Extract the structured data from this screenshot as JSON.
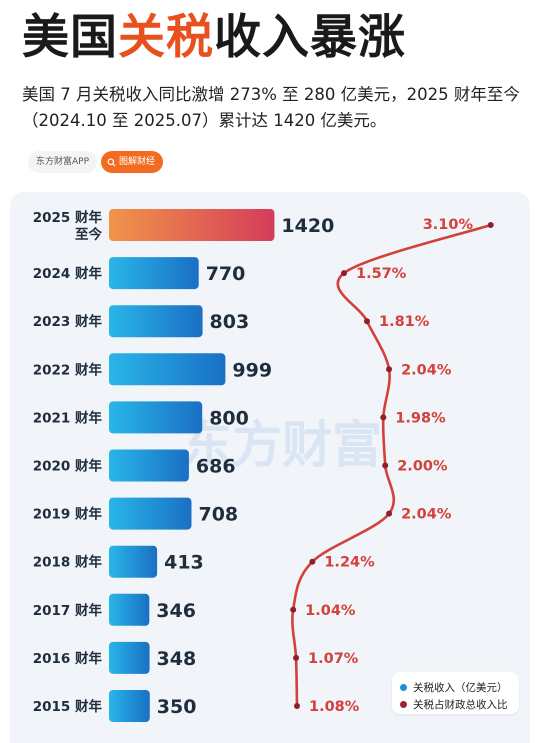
{
  "header": {
    "title_pre": "美国",
    "title_highlight": "关税",
    "title_post": "收入暴涨",
    "subtitle": "美国 7 月关税收入同比激增 273% 至 280 亿美元，2025 财年至今（2024.10 至 2025.07）累计达 1420 亿美元。"
  },
  "badges": {
    "app": "东方财富APP",
    "tag": "图解财经"
  },
  "watermark": "东方财富",
  "chart_data": {
    "type": "bar",
    "orientation": "horizontal",
    "categories": [
      "2025 财年至今",
      "2024 财年",
      "2023 财年",
      "2022 财年",
      "2021 财年",
      "2020 财年",
      "2019 财年",
      "2018 财年",
      "2017 财年",
      "2016 财年",
      "2015 财年"
    ],
    "category_lines": [
      [
        "2025 财年",
        "至今"
      ],
      [
        "2024 财年"
      ],
      [
        "2023 财年"
      ],
      [
        "2022 财年"
      ],
      [
        "2021 财年"
      ],
      [
        "2020 财年"
      ],
      [
        "2019 财年"
      ],
      [
        "2018 财年"
      ],
      [
        "2017 财年"
      ],
      [
        "2016 财年"
      ],
      [
        "2015 财年"
      ]
    ],
    "series": [
      {
        "name": "关税收入（亿美元）",
        "type": "bar",
        "values": [
          1420,
          770,
          803,
          999,
          800,
          686,
          708,
          413,
          346,
          348,
          350
        ],
        "color": "#1a8fd8",
        "highlight_gradient": [
          "#f0954a",
          "#d43d5a"
        ]
      },
      {
        "name": "关税占财政总收入比",
        "type": "line",
        "values": [
          3.1,
          1.57,
          1.81,
          2.04,
          1.98,
          2.0,
          2.04,
          1.24,
          1.04,
          1.07,
          1.08
        ],
        "labels": [
          "3.10%",
          "1.57%",
          "1.81%",
          "2.04%",
          "1.98%",
          "2.00%",
          "2.04%",
          "1.24%",
          "1.04%",
          "1.07%",
          "1.08%"
        ],
        "unit": "%",
        "color": "#d2413a"
      }
    ],
    "legend": {
      "position": "bottom-right",
      "entries": [
        {
          "label": "关税收入（亿美元）",
          "color": "#1a8fd8"
        },
        {
          "label": "关税占财政总收入比",
          "color": "#9b2335"
        }
      ]
    }
  }
}
